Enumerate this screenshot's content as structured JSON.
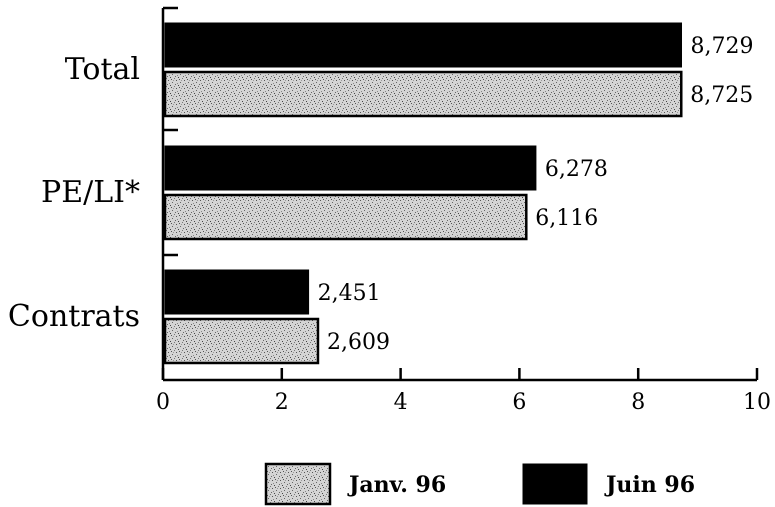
{
  "chart_data": {
    "type": "bar",
    "orientation": "horizontal",
    "categories": [
      "Total",
      "PE/LI*",
      "Contrats"
    ],
    "series": [
      {
        "name": "Juin 96",
        "color": "#000000",
        "values": [
          8.729,
          6.278,
          2.451
        ],
        "labels": [
          "8,729",
          "6,278",
          "2,451"
        ]
      },
      {
        "name": "Janv. 96",
        "color": "#cfcfcf",
        "pattern": "stipple",
        "values": [
          8.725,
          6.116,
          2.609
        ],
        "labels": [
          "8,725",
          "6,116",
          "2,609"
        ]
      }
    ],
    "xlim": [
      0,
      10
    ],
    "xticks": [
      "0",
      "2",
      "4",
      "6",
      "8",
      "10"
    ],
    "grid": false,
    "legend": {
      "position": "bottom",
      "entries": [
        "Janv. 96",
        "Juin 96"
      ]
    }
  }
}
